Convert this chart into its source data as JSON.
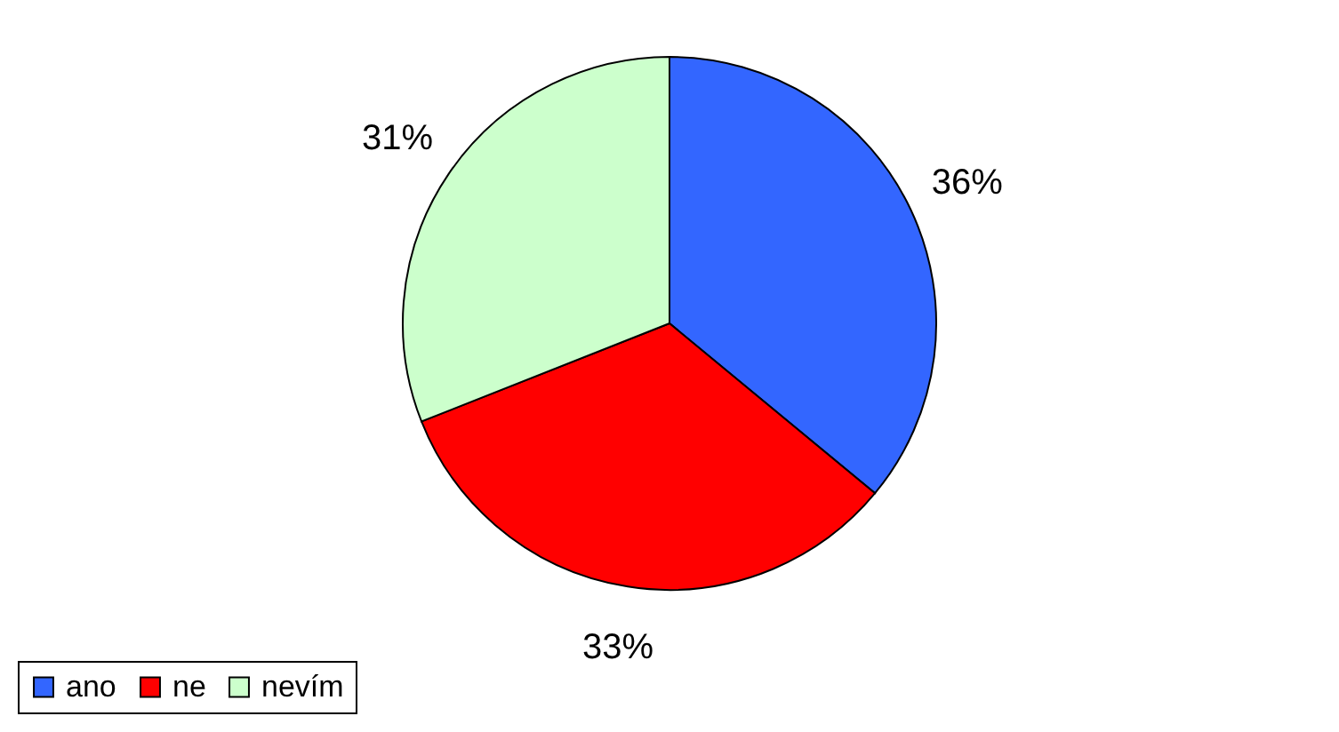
{
  "chart_data": {
    "type": "pie",
    "categories": [
      "ano",
      "ne",
      "nevím"
    ],
    "values": [
      36,
      33,
      31
    ],
    "value_labels": [
      "36%",
      "33%",
      "31%"
    ],
    "colors": [
      "#3366ff",
      "#ff0000",
      "#ccffcc"
    ],
    "legend": "bottom"
  }
}
